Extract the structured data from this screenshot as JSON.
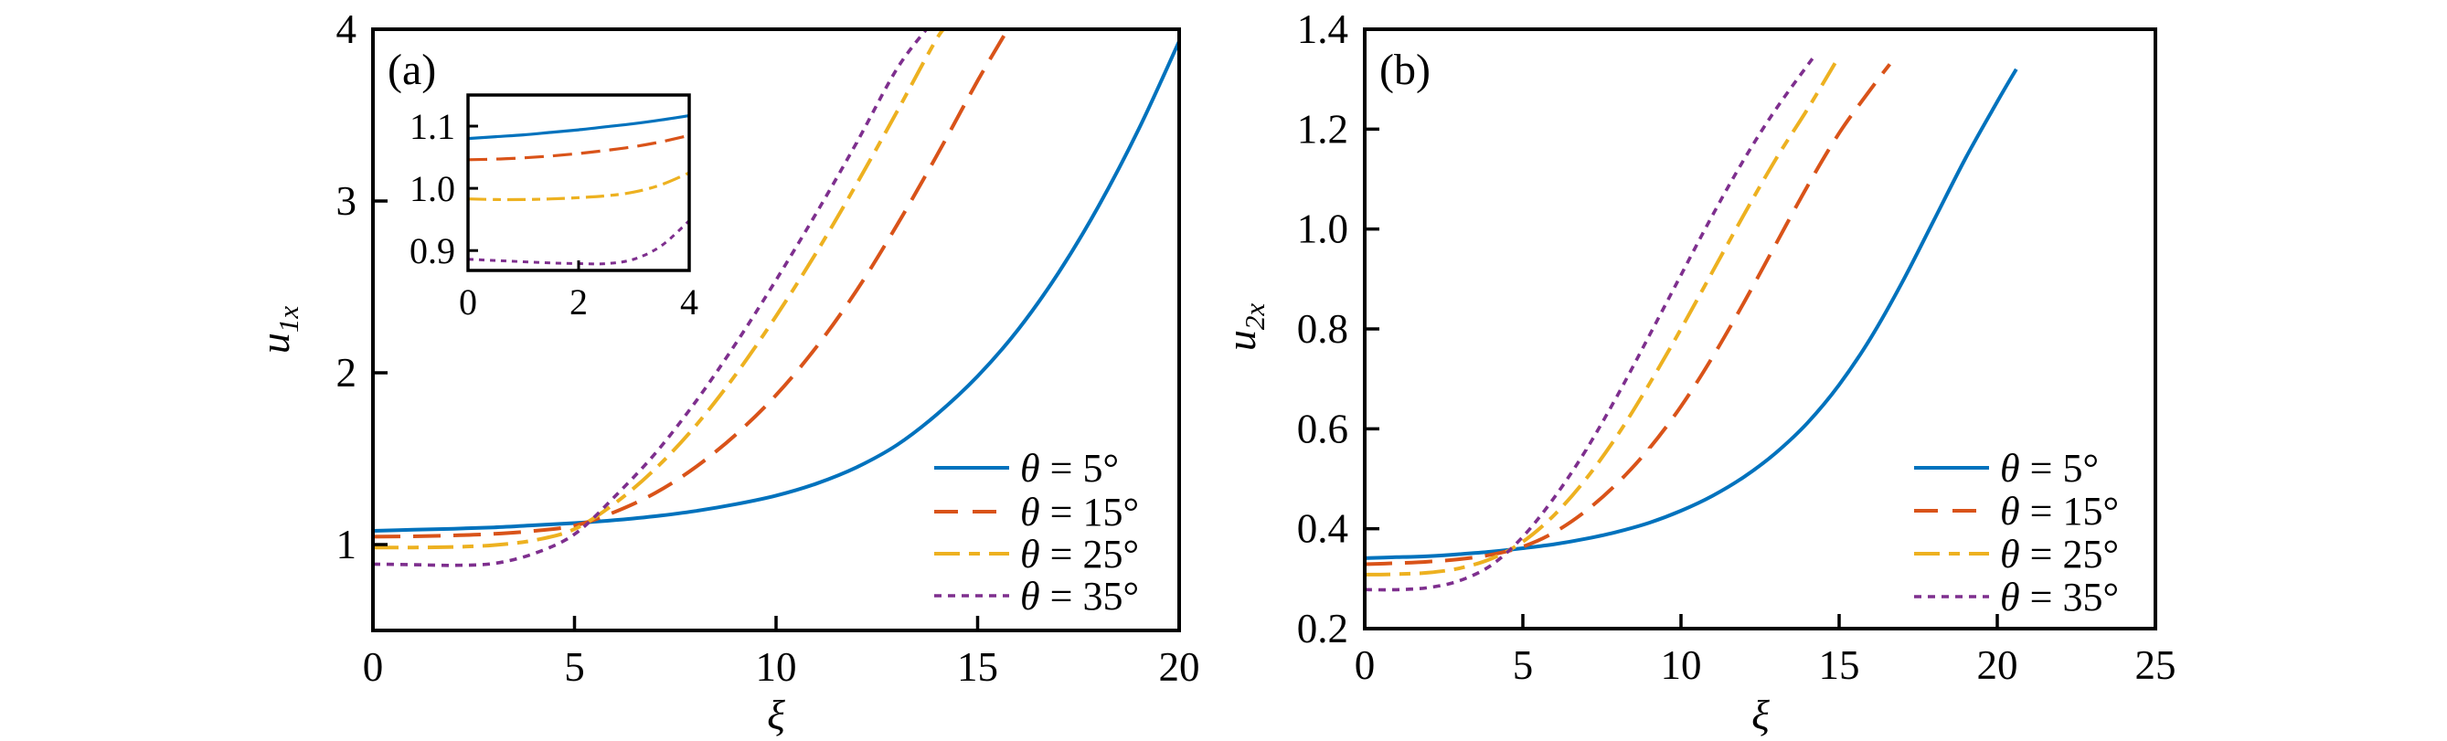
{
  "page": {
    "background": "#ffffff"
  },
  "colors": {
    "axis": "#000000",
    "blue": "#0072BD",
    "red": "#D95319",
    "yellow": "#EDB120",
    "purple": "#7E2F8E"
  },
  "chart_data": [
    {
      "id": "a",
      "type": "line",
      "panel_label": "(a)",
      "xlabel": "ξ",
      "ylabel": {
        "base": "u",
        "sub": "1x"
      },
      "xlim": [
        0,
        20
      ],
      "ylim": [
        0.5,
        4
      ],
      "xticks": [
        0,
        5,
        10,
        15,
        20
      ],
      "yticks": [
        1,
        2,
        3,
        4
      ],
      "xtick_labels": [
        "0",
        "5",
        "10",
        "15",
        "20"
      ],
      "ytick_labels": [
        "1",
        "2",
        "3",
        "4"
      ],
      "grid": false,
      "legend_position": "lower right",
      "series": [
        {
          "label_symbol": "θ",
          "label_suffix": " = 5°",
          "name": "θ = 5°",
          "color": "#0072BD",
          "line_style": "solid",
          "x": [
            0,
            1,
            2,
            3,
            4,
            5,
            6,
            7,
            8,
            9,
            10,
            11,
            12,
            13,
            14,
            15,
            16,
            17,
            18,
            19,
            20
          ],
          "y": [
            1.08,
            1.086,
            1.092,
            1.1,
            1.112,
            1.125,
            1.142,
            1.165,
            1.195,
            1.235,
            1.285,
            1.355,
            1.45,
            1.58,
            1.76,
            1.98,
            2.25,
            2.58,
            2.97,
            3.42,
            3.93
          ]
        },
        {
          "label_symbol": "θ",
          "label_suffix": " = 15°",
          "name": "θ = 15°",
          "color": "#D95319",
          "line_style": "dashed",
          "x": [
            0,
            1,
            2,
            3,
            4,
            5,
            6,
            7,
            8,
            9,
            10,
            11,
            12,
            13,
            14,
            15,
            15.8
          ],
          "y": [
            1.046,
            1.048,
            1.053,
            1.062,
            1.08,
            1.11,
            1.19,
            1.3,
            1.45,
            1.64,
            1.87,
            2.15,
            2.48,
            2.86,
            3.27,
            3.7,
            4.02
          ]
        },
        {
          "label_symbol": "θ",
          "label_suffix": " = 25°",
          "name": "θ = 25°",
          "color": "#EDB120",
          "line_style": "dashdot",
          "x": [
            0,
            1,
            2,
            3,
            4,
            5,
            6,
            7,
            8,
            9,
            10,
            11,
            12,
            13,
            14,
            14.3
          ],
          "y": [
            0.983,
            0.983,
            0.986,
            0.997,
            1.025,
            1.09,
            1.24,
            1.44,
            1.69,
            1.99,
            2.33,
            2.7,
            3.1,
            3.52,
            3.95,
            4.02
          ]
        },
        {
          "label_symbol": "θ",
          "label_suffix": " = 35°",
          "name": "θ = 35°",
          "color": "#7E2F8E",
          "line_style": "dotted",
          "x": [
            0,
            1,
            2,
            3,
            4,
            5,
            6,
            7,
            8,
            9,
            10,
            11,
            12,
            13,
            13.8
          ],
          "y": [
            0.886,
            0.883,
            0.879,
            0.89,
            0.948,
            1.06,
            1.28,
            1.53,
            1.83,
            2.17,
            2.54,
            2.93,
            3.34,
            3.77,
            4.02
          ]
        }
      ],
      "inset": {
        "xlim": [
          0,
          4
        ],
        "ylim": [
          0.868,
          1.15
        ],
        "xticks": [
          0,
          2,
          4
        ],
        "yticks": [
          0.9,
          1.0,
          1.1
        ],
        "xtick_labels": [
          "0",
          "2",
          "4"
        ],
        "ytick_labels": [
          "0.9",
          "1.0",
          "1.1"
        ],
        "series": [
          {
            "color": "#0072BD",
            "line_style": "solid",
            "x": [
              0,
              0.5,
              1,
              1.5,
              2,
              2.5,
              3,
              3.5,
              4
            ],
            "y": [
              1.08,
              1.083,
              1.086,
              1.09,
              1.094,
              1.099,
              1.104,
              1.11,
              1.117
            ]
          },
          {
            "color": "#D95319",
            "line_style": "dashed",
            "x": [
              0,
              0.5,
              1,
              1.5,
              2,
              2.5,
              3,
              3.5,
              4
            ],
            "y": [
              1.046,
              1.047,
              1.049,
              1.052,
              1.056,
              1.061,
              1.067,
              1.075,
              1.085
            ]
          },
          {
            "color": "#EDB120",
            "line_style": "dashdot",
            "x": [
              0,
              0.5,
              1,
              1.5,
              2,
              2.5,
              3,
              3.5,
              4
            ],
            "y": [
              0.983,
              0.982,
              0.982,
              0.983,
              0.985,
              0.988,
              0.994,
              1.006,
              1.025
            ]
          },
          {
            "color": "#7E2F8E",
            "line_style": "dotted",
            "x": [
              0,
              0.5,
              1,
              1.5,
              2,
              2.5,
              3,
              3.5,
              4
            ],
            "y": [
              0.886,
              0.884,
              0.882,
              0.88,
              0.879,
              0.879,
              0.886,
              0.908,
              0.948
            ]
          }
        ]
      }
    },
    {
      "id": "b",
      "type": "line",
      "panel_label": "(b)",
      "xlabel": "ξ",
      "ylabel": {
        "base": "u",
        "sub": "2x"
      },
      "xlim": [
        0,
        25
      ],
      "ylim": [
        0.2,
        1.4
      ],
      "xticks": [
        0,
        5,
        10,
        15,
        20,
        25
      ],
      "yticks": [
        0.2,
        0.4,
        0.6,
        0.8,
        1.0,
        1.2,
        1.4
      ],
      "xtick_labels": [
        "0",
        "5",
        "10",
        "15",
        "20",
        "25"
      ],
      "ytick_labels": [
        "0.2",
        "0.4",
        "0.6",
        "0.8",
        "1.0",
        "1.2",
        "1.4"
      ],
      "grid": false,
      "legend_position": "lower right",
      "series": [
        {
          "label_symbol": "θ",
          "label_suffix": " = 5°",
          "name": "θ = 5°",
          "color": "#0072BD",
          "line_style": "solid",
          "x": [
            0,
            1,
            2,
            3,
            4,
            5,
            6,
            7,
            8,
            9,
            10,
            11,
            12,
            13,
            14,
            15,
            16,
            17,
            18,
            19,
            20,
            20.6
          ],
          "y": [
            0.341,
            0.343,
            0.345,
            0.349,
            0.354,
            0.361,
            0.369,
            0.38,
            0.394,
            0.412,
            0.436,
            0.466,
            0.504,
            0.552,
            0.612,
            0.688,
            0.782,
            0.894,
            1.018,
            1.142,
            1.255,
            1.32
          ]
        },
        {
          "label_symbol": "θ",
          "label_suffix": " = 15°",
          "name": "θ = 15°",
          "color": "#D95319",
          "line_style": "dashed",
          "x": [
            0,
            1,
            2,
            3,
            4,
            5,
            6,
            7,
            8,
            9,
            10,
            11,
            12,
            13,
            14,
            15,
            16,
            16.6
          ],
          "y": [
            0.329,
            0.331,
            0.334,
            0.339,
            0.348,
            0.364,
            0.393,
            0.436,
            0.492,
            0.561,
            0.645,
            0.744,
            0.854,
            0.97,
            1.086,
            1.192,
            1.28,
            1.33
          ]
        },
        {
          "label_symbol": "θ",
          "label_suffix": " = 25°",
          "name": "θ = 25°",
          "color": "#EDB120",
          "line_style": "dashdot",
          "x": [
            0,
            1,
            2,
            3,
            4,
            5,
            6,
            7,
            8,
            9,
            10,
            11,
            12,
            13,
            14,
            14.9
          ],
          "y": [
            0.308,
            0.309,
            0.312,
            0.321,
            0.34,
            0.374,
            0.428,
            0.5,
            0.588,
            0.69,
            0.8,
            0.915,
            1.03,
            1.14,
            1.24,
            1.335
          ]
        },
        {
          "label_symbol": "θ",
          "label_suffix": " = 35°",
          "name": "θ = 35°",
          "color": "#7E2F8E",
          "line_style": "dotted",
          "x": [
            0,
            1,
            2,
            3,
            4,
            5,
            6,
            7,
            8,
            9,
            10,
            11,
            12,
            13,
            14.2
          ],
          "y": [
            0.278,
            0.278,
            0.282,
            0.296,
            0.327,
            0.384,
            0.463,
            0.558,
            0.668,
            0.787,
            0.908,
            1.028,
            1.14,
            1.24,
            1.345
          ]
        }
      ]
    }
  ]
}
